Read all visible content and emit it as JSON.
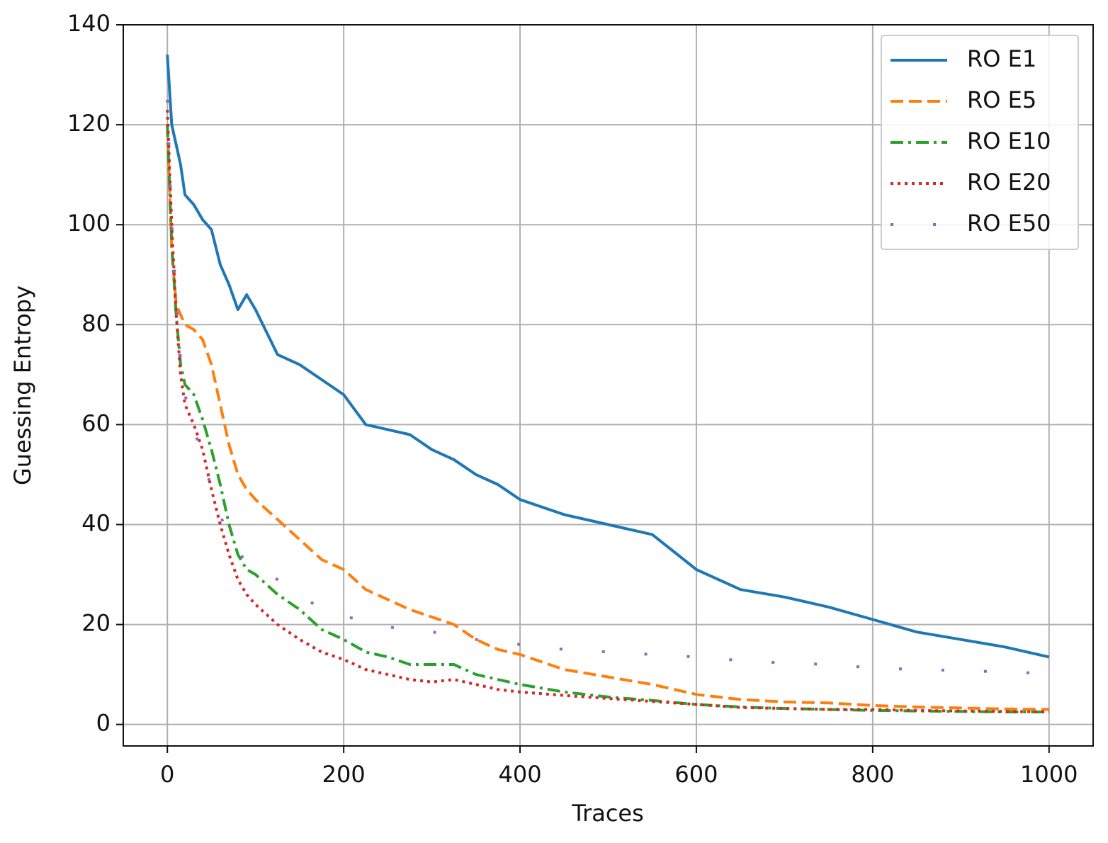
{
  "chart_data": {
    "type": "line",
    "xlabel": "Traces",
    "ylabel": "Guessing Entropy",
    "x": [
      0,
      5,
      10,
      15,
      20,
      30,
      40,
      50,
      60,
      70,
      80,
      90,
      100,
      125,
      150,
      175,
      200,
      225,
      250,
      275,
      300,
      325,
      350,
      375,
      400,
      450,
      500,
      550,
      600,
      650,
      700,
      750,
      800,
      850,
      900,
      950,
      1000
    ],
    "series": [
      {
        "name": "RO E1",
        "color": "#1f77b4",
        "linestyle": "solid",
        "values": [
          134,
          120,
          116,
          112,
          106,
          104,
          101,
          99,
          92,
          88,
          83,
          86,
          83,
          74,
          72,
          69,
          66,
          60,
          59,
          58,
          55,
          53,
          50,
          48,
          45,
          42,
          40,
          38,
          31,
          27,
          25.5,
          23.5,
          21,
          18.5,
          17,
          15.5,
          13.5
        ]
      },
      {
        "name": "RO E5",
        "color": "#ff7f0e",
        "linestyle": "dashed",
        "values": [
          120,
          95,
          84,
          82,
          80,
          79,
          77,
          72,
          64,
          56,
          50,
          47,
          45,
          41,
          37,
          33,
          31,
          27,
          25,
          23,
          21.5,
          20,
          17,
          15,
          14,
          11,
          9.5,
          8,
          6,
          5,
          4.5,
          4.3,
          3.8,
          3.5,
          3.3,
          3.1,
          3
        ]
      },
      {
        "name": "RO E10",
        "color": "#2ca02c",
        "linestyle": "dashdot",
        "values": [
          120,
          96,
          82,
          72,
          68,
          66,
          61,
          55,
          48,
          40,
          34,
          31,
          30,
          26,
          23,
          19,
          17,
          14.5,
          13.5,
          12,
          12,
          12,
          10,
          9,
          8,
          6.5,
          5.5,
          4.8,
          4,
          3.5,
          3.2,
          3,
          2.8,
          2.7,
          2.6,
          2.5,
          2.5
        ]
      },
      {
        "name": "RO E20",
        "color": "#d62728",
        "linestyle": "dotted",
        "values": [
          123,
          100,
          82,
          70,
          64,
          60,
          55,
          47,
          40,
          34,
          29,
          26,
          24,
          20,
          17,
          14.5,
          13,
          11,
          10,
          9,
          8.5,
          9,
          8,
          7,
          6.5,
          5.8,
          5.2,
          4.6,
          4,
          3.4,
          3.2,
          3,
          3,
          2.8,
          2.7,
          2.6,
          2.5
        ]
      },
      {
        "name": "RO E50",
        "color": "#9467bd",
        "linestyle": "loosely dotted",
        "values": [
          125,
          100,
          85,
          73,
          66,
          59,
          54,
          47,
          42,
          37,
          35,
          32,
          31,
          29,
          26,
          23,
          21.5,
          21,
          19.5,
          19,
          18.5,
          18,
          17,
          16.5,
          16,
          15,
          14.5,
          14,
          13.5,
          12.8,
          12.3,
          12,
          11.3,
          11,
          10.8,
          10.5,
          10.2
        ]
      }
    ],
    "xlim": [
      -50,
      1050
    ],
    "ylim": [
      -4.3,
      140
    ],
    "xticks": [
      0,
      200,
      400,
      600,
      800,
      1000
    ],
    "yticks": [
      0,
      20,
      40,
      60,
      80,
      100,
      120,
      140
    ],
    "grid": true,
    "legend": "upper right"
  }
}
